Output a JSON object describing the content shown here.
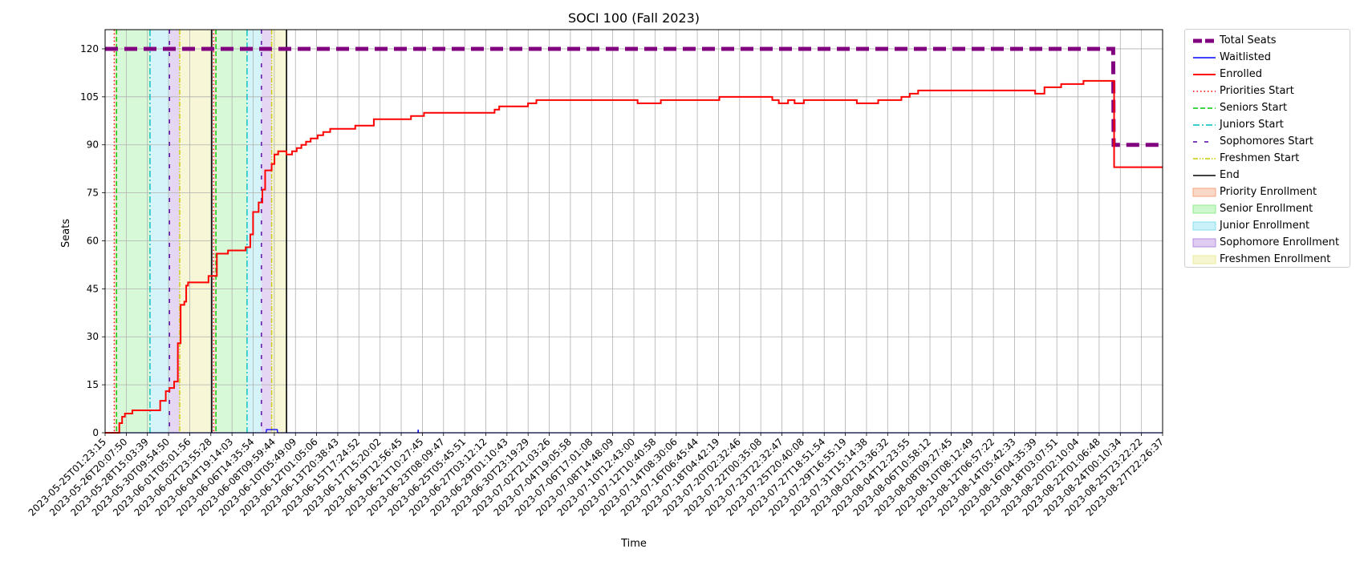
{
  "chart_data": {
    "type": "line",
    "title": "SOCI 100 (Fall 2023)",
    "xlabel": "Time",
    "ylabel": "Seats",
    "ylim": [
      0,
      126
    ],
    "yticks": [
      0,
      15,
      30,
      45,
      60,
      75,
      90,
      105,
      120
    ],
    "x_range": [
      "2023-05-25T01:23:15",
      "2023-08-27T22:26:37"
    ],
    "xtick_labels": [
      "2023-05-25T01:23:15",
      "2023-05-26T20:07:50",
      "2023-05-28T15:03:39",
      "2023-05-30T09:54:50",
      "2023-06-01T05:01:56",
      "2023-06-02T23:55:28",
      "2023-06-04T19:14:03",
      "2023-06-06T14:35:54",
      "2023-06-08T09:59:44",
      "2023-06-10T05:49:09",
      "2023-06-12T01:05:06",
      "2023-06-13T20:38:43",
      "2023-06-15T17:24:52",
      "2023-06-17T15:20:02",
      "2023-06-19T12:56:45",
      "2023-06-21T10:27:45",
      "2023-06-23T08:09:47",
      "2023-06-25T05:45:51",
      "2023-06-27T03:12:12",
      "2023-06-29T01:10:43",
      "2023-06-30T23:19:29",
      "2023-07-02T21:03:26",
      "2023-07-04T19:05:58",
      "2023-07-06T17:01:08",
      "2023-07-08T14:48:09",
      "2023-07-10T12:43:00",
      "2023-07-12T10:40:58",
      "2023-07-14T08:30:06",
      "2023-07-16T06:45:44",
      "2023-07-18T04:42:19",
      "2023-07-20T02:32:46",
      "2023-07-22T00:35:08",
      "2023-07-23T22:32:47",
      "2023-07-25T20:40:08",
      "2023-07-27T18:51:54",
      "2023-07-29T16:55:19",
      "2023-07-31T15:14:38",
      "2023-08-02T13:36:32",
      "2023-08-04T12:23:55",
      "2023-08-06T10:58:12",
      "2023-08-08T09:27:45",
      "2023-08-10T08:12:49",
      "2023-08-12T06:57:22",
      "2023-08-14T05:42:33",
      "2023-08-16T04:35:39",
      "2023-08-18T03:07:51",
      "2023-08-20T02:10:04",
      "2023-08-22T01:06:48",
      "2023-08-24T00:10:34",
      "2023-08-25T23:22:22",
      "2023-08-27T22:26:37"
    ],
    "grid": true,
    "legend_placement": "outside upper right",
    "series": [
      {
        "name": "Total Seats",
        "color": "#800080",
        "style": "dashed-thick",
        "points": [
          [
            "2023-05-25T01:23:15",
            120
          ],
          [
            "2023-08-23T12:00:00",
            120
          ],
          [
            "2023-08-23T13:00:00",
            90
          ],
          [
            "2023-08-27T22:26:37",
            90
          ]
        ]
      },
      {
        "name": "Waitlisted",
        "color": "#0000ff",
        "style": "solid",
        "points": [
          [
            "2023-05-25T01:23:15",
            0
          ],
          [
            "2023-06-08T12:00:00",
            0
          ],
          [
            "2023-06-08T13:00:00",
            1
          ],
          [
            "2023-06-09T12:00:00",
            1
          ],
          [
            "2023-06-09T13:00:00",
            0
          ],
          [
            "2023-06-22T03:00:00",
            0
          ],
          [
            "2023-06-22T03:30:00",
            1
          ],
          [
            "2023-06-22T04:00:00",
            0
          ],
          [
            "2023-08-27T22:26:37",
            0
          ]
        ]
      },
      {
        "name": "Enrolled",
        "color": "#ff0000",
        "style": "solid-step",
        "points": [
          [
            "2023-05-25T01:23:15",
            0
          ],
          [
            "2023-05-26T00:00:00",
            0
          ],
          [
            "2023-05-26T08:00:00",
            3
          ],
          [
            "2023-05-26T14:00:00",
            5
          ],
          [
            "2023-05-26T20:00:00",
            6
          ],
          [
            "2023-05-27T12:00:00",
            7
          ],
          [
            "2023-05-29T12:00:00",
            7
          ],
          [
            "2023-05-30T00:00:00",
            10
          ],
          [
            "2023-05-30T12:00:00",
            13
          ],
          [
            "2023-05-30T20:00:00",
            14
          ],
          [
            "2023-05-31T06:00:00",
            16
          ],
          [
            "2023-05-31T14:00:00",
            28
          ],
          [
            "2023-05-31T20:00:00",
            40
          ],
          [
            "2023-06-01T04:00:00",
            41
          ],
          [
            "2023-06-01T08:00:00",
            46
          ],
          [
            "2023-06-01T12:00:00",
            47
          ],
          [
            "2023-06-03T00:00:00",
            47
          ],
          [
            "2023-06-03T08:00:00",
            49
          ],
          [
            "2023-06-04T02:00:00",
            56
          ],
          [
            "2023-06-05T02:00:00",
            57
          ],
          [
            "2023-06-06T16:00:00",
            58
          ],
          [
            "2023-06-07T02:00:00",
            62
          ],
          [
            "2023-06-07T08:00:00",
            69
          ],
          [
            "2023-06-07T20:00:00",
            72
          ],
          [
            "2023-06-08T04:00:00",
            76
          ],
          [
            "2023-06-08T10:00:00",
            82
          ],
          [
            "2023-06-09T00:00:00",
            84
          ],
          [
            "2023-06-09T06:00:00",
            87
          ],
          [
            "2023-06-09T14:00:00",
            88
          ],
          [
            "2023-06-10T08:00:00",
            87
          ],
          [
            "2023-06-10T20:00:00",
            88
          ],
          [
            "2023-06-11T06:00:00",
            89
          ],
          [
            "2023-06-11T16:00:00",
            90
          ],
          [
            "2023-06-12T02:00:00",
            91
          ],
          [
            "2023-06-12T12:00:00",
            92
          ],
          [
            "2023-06-13T03:00:00",
            93
          ],
          [
            "2023-06-13T15:00:00",
            94
          ],
          [
            "2023-06-14T06:00:00",
            95
          ],
          [
            "2023-06-16T12:00:00",
            96
          ],
          [
            "2023-06-18T04:00:00",
            98
          ],
          [
            "2023-06-21T12:00:00",
            99
          ],
          [
            "2023-06-22T16:00:00",
            100
          ],
          [
            "2023-06-29T00:00:00",
            101
          ],
          [
            "2023-06-29T10:00:00",
            102
          ],
          [
            "2023-07-02T00:00:00",
            103
          ],
          [
            "2023-07-02T18:00:00",
            104
          ],
          [
            "2023-07-11T20:00:00",
            103
          ],
          [
            "2023-07-13T22:00:00",
            104
          ],
          [
            "2023-07-19T04:00:00",
            105
          ],
          [
            "2023-07-23T22:00:00",
            104
          ],
          [
            "2023-07-24T12:00:00",
            103
          ],
          [
            "2023-07-25T08:00:00",
            104
          ],
          [
            "2023-07-25T22:00:00",
            103
          ],
          [
            "2023-07-26T18:00:00",
            104
          ],
          [
            "2023-07-31T12:00:00",
            103
          ],
          [
            "2023-08-02T10:00:00",
            104
          ],
          [
            "2023-08-04T12:00:00",
            105
          ],
          [
            "2023-08-05T06:00:00",
            106
          ],
          [
            "2023-08-06T00:00:00",
            107
          ],
          [
            "2023-08-16T12:00:00",
            106
          ],
          [
            "2023-08-17T08:00:00",
            108
          ],
          [
            "2023-08-18T20:00:00",
            109
          ],
          [
            "2023-08-20T20:00:00",
            110
          ],
          [
            "2023-08-23T14:00:00",
            83
          ],
          [
            "2023-08-27T22:26:37",
            83
          ]
        ]
      }
    ],
    "vertical_markers": [
      {
        "name": "Priorities Start",
        "color": "#ff0000",
        "style": "dotted",
        "x": [
          "2023-05-25T21:00:00",
          "2023-06-03T19:00:00"
        ]
      },
      {
        "name": "Seniors Start",
        "color": "#00cc00",
        "style": "dashed",
        "x": [
          "2023-05-26T02:00:00",
          "2023-06-04T00:00:00"
        ]
      },
      {
        "name": "Juniors Start",
        "color": "#00bfbf",
        "style": "dashdot",
        "x": [
          "2023-05-29T02:00:00",
          "2023-06-06T19:00:00"
        ]
      },
      {
        "name": "Sophomores Start",
        "color": "#5500aa",
        "style": "loosedash",
        "x": [
          "2023-05-30T20:00:00",
          "2023-06-08T02:00:00"
        ]
      },
      {
        "name": "Freshmen Start",
        "color": "#cccc00",
        "style": "dashdotdot",
        "x": [
          "2023-05-31T18:00:00",
          "2023-06-09T00:00:00"
        ]
      },
      {
        "name": "End",
        "color": "#000000",
        "style": "solid",
        "x": [
          "2023-06-03T15:00:00",
          "2023-06-10T08:00:00"
        ]
      }
    ],
    "spans": [
      {
        "name": "Priority Enrollment",
        "color": "#f4a582",
        "opacity": 0.35,
        "ranges": [
          [
            "2023-05-25T21:00:00",
            "2023-05-26T02:00:00"
          ],
          [
            "2023-06-03T19:00:00",
            "2023-06-04T00:00:00"
          ]
        ]
      },
      {
        "name": "Senior Enrollment",
        "color": "#90ee90",
        "opacity": 0.35,
        "ranges": [
          [
            "2023-05-26T02:00:00",
            "2023-05-29T02:00:00"
          ],
          [
            "2023-06-04T00:00:00",
            "2023-06-06T19:00:00"
          ]
        ]
      },
      {
        "name": "Junior Enrollment",
        "color": "#87e0ee",
        "opacity": 0.35,
        "ranges": [
          [
            "2023-05-29T02:00:00",
            "2023-05-30T20:00:00"
          ],
          [
            "2023-06-06T19:00:00",
            "2023-06-08T02:00:00"
          ]
        ]
      },
      {
        "name": "Sophomore Enrollment",
        "color": "#b58de0",
        "opacity": 0.35,
        "ranges": [
          [
            "2023-05-30T20:00:00",
            "2023-05-31T18:00:00"
          ],
          [
            "2023-06-08T02:00:00",
            "2023-06-09T00:00:00"
          ]
        ]
      },
      {
        "name": "Freshmen Enrollment",
        "color": "#ecec9a",
        "opacity": 0.4,
        "ranges": [
          [
            "2023-05-31T18:00:00",
            "2023-06-03T15:00:00"
          ],
          [
            "2023-06-09T00:00:00",
            "2023-06-10T08:00:00"
          ]
        ]
      }
    ],
    "legend": [
      {
        "label": "Total Seats",
        "kind": "line",
        "color": "#800080",
        "style": "dashed-thick"
      },
      {
        "label": "Waitlisted",
        "kind": "line",
        "color": "#0000ff",
        "style": "solid"
      },
      {
        "label": "Enrolled",
        "kind": "line",
        "color": "#ff0000",
        "style": "solid"
      },
      {
        "label": "Priorities Start",
        "kind": "line",
        "color": "#ff0000",
        "style": "dotted"
      },
      {
        "label": "Seniors Start",
        "kind": "line",
        "color": "#00cc00",
        "style": "dashed"
      },
      {
        "label": "Juniors Start",
        "kind": "line",
        "color": "#00bfbf",
        "style": "dashdot"
      },
      {
        "label": "Sophomores Start",
        "kind": "line",
        "color": "#5500aa",
        "style": "loosedash"
      },
      {
        "label": "Freshmen Start",
        "kind": "line",
        "color": "#cccc00",
        "style": "dashdotdot"
      },
      {
        "label": "End",
        "kind": "line",
        "color": "#000000",
        "style": "solid"
      },
      {
        "label": "Priority Enrollment",
        "kind": "patch",
        "color": "#f4a582"
      },
      {
        "label": "Senior Enrollment",
        "kind": "patch",
        "color": "#90ee90"
      },
      {
        "label": "Junior Enrollment",
        "kind": "patch",
        "color": "#87e0ee"
      },
      {
        "label": "Sophomore Enrollment",
        "kind": "patch",
        "color": "#b58de0"
      },
      {
        "label": "Freshmen Enrollment",
        "kind": "patch",
        "color": "#ecec9a"
      }
    ]
  }
}
